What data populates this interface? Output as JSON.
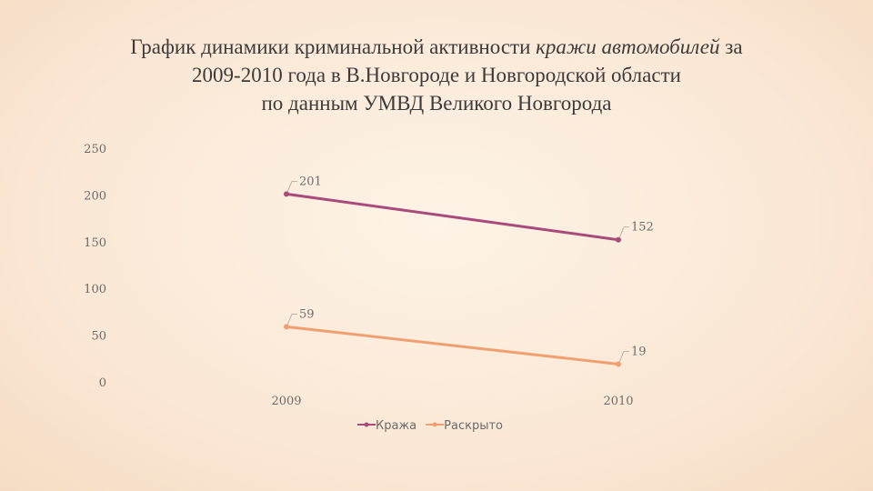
{
  "title": {
    "line1_a": "График динамики криминальной активности ",
    "line1_em": "кражи автомобилей",
    "line1_b": " за",
    "line2": "2009-2010 года в В.Новгороде и Новгородской области",
    "line3": "по данным УМВД Великого Новгорода"
  },
  "chart_data": {
    "type": "line",
    "categories": [
      "2009",
      "2010"
    ],
    "ylim": [
      0,
      250
    ],
    "yticks": [
      0,
      50,
      100,
      150,
      200,
      250
    ],
    "ytick_labels": [
      "0",
      "50",
      "100",
      "150",
      "200",
      "250"
    ],
    "grid": false,
    "legend_position": "bottom",
    "series": [
      {
        "name": "Кража",
        "values": [
          201,
          152
        ],
        "labels": [
          "201",
          "152"
        ],
        "color": "#a84a7a"
      },
      {
        "name": "Раскрыто",
        "values": [
          59,
          19
        ],
        "labels": [
          "59",
          "19"
        ],
        "color": "#f0a070"
      }
    ]
  }
}
